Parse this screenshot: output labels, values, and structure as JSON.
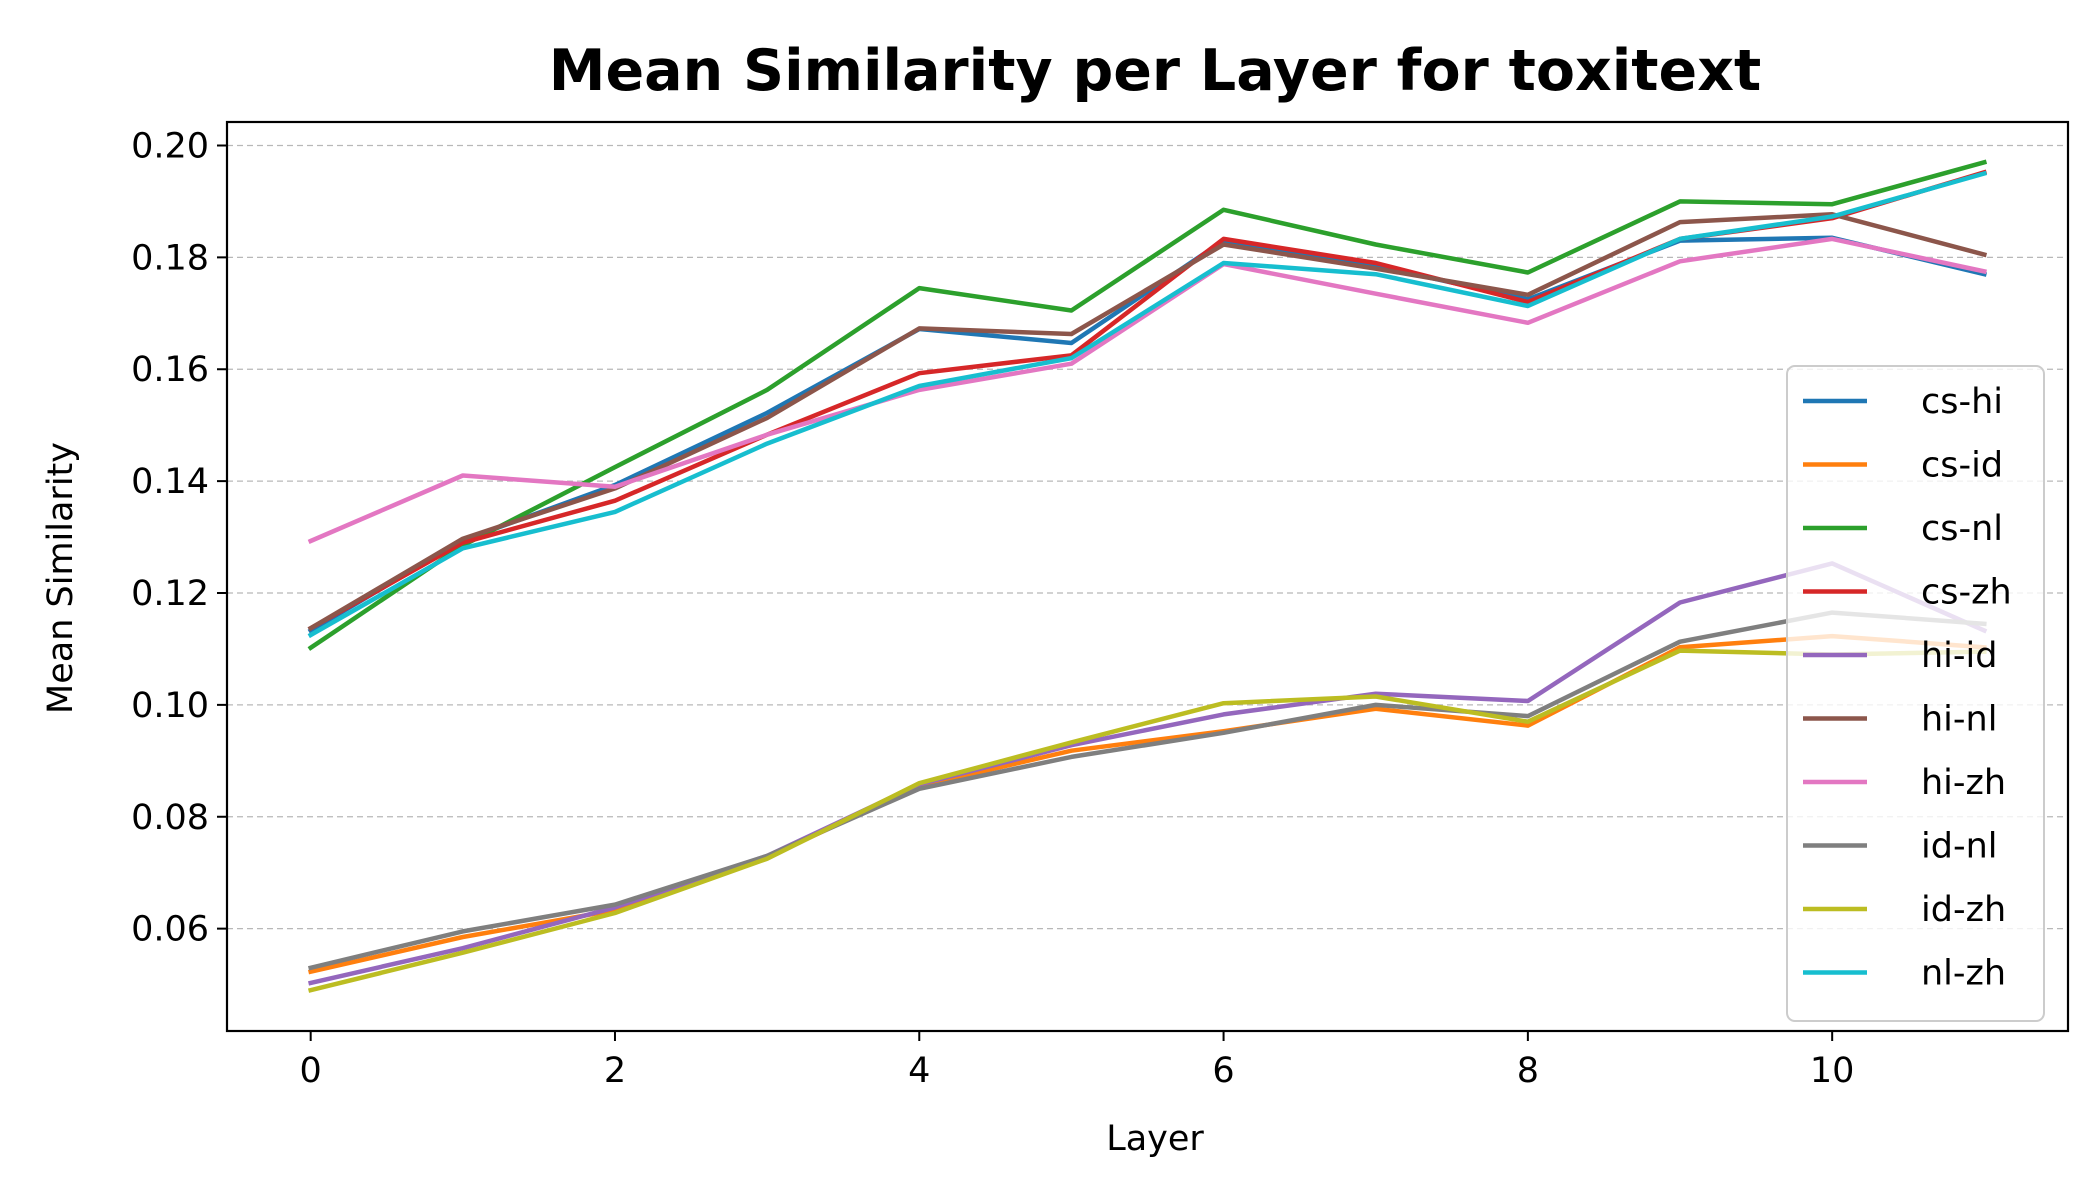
{
  "chart_data": {
    "type": "line",
    "title": "Mean Similarity per Layer for toxitext",
    "xlabel": "Layer",
    "ylabel": "Mean Similarity",
    "x": [
      0,
      1,
      2,
      3,
      4,
      5,
      6,
      7,
      8,
      9,
      10,
      11
    ],
    "xlim": [
      -0.55,
      11.55
    ],
    "ylim": [
      0.0417,
      0.2042
    ],
    "xticks": [
      0,
      2,
      4,
      6,
      8,
      10
    ],
    "xtick_labels": [
      "0",
      "2",
      "4",
      "6",
      "8",
      "10"
    ],
    "yticks": [
      0.06,
      0.08,
      0.1,
      0.12,
      0.14,
      0.16,
      0.18,
      0.2
    ],
    "ytick_labels": [
      "0.06",
      "0.08",
      "0.10",
      "0.12",
      "0.14",
      "0.16",
      "0.18",
      "0.20"
    ],
    "grid": "y-dashed",
    "legend_position": "right",
    "series": [
      {
        "name": "cs-hi",
        "color": "#1f77b4",
        "values": [
          0.1133,
          0.1294,
          0.1393,
          0.1522,
          0.1672,
          0.1647,
          0.183,
          0.1785,
          0.1725,
          0.183,
          0.1835,
          0.177
        ]
      },
      {
        "name": "cs-id",
        "color": "#ff7f0e",
        "values": [
          0.0523,
          0.0585,
          0.0633,
          0.0727,
          0.0855,
          0.0918,
          0.0953,
          0.0993,
          0.0963,
          0.1103,
          0.1123,
          0.1103
        ]
      },
      {
        "name": "cs-nl",
        "color": "#2ca02c",
        "values": [
          0.1102,
          0.1285,
          0.1425,
          0.1563,
          0.1745,
          0.1705,
          0.1885,
          0.1823,
          0.1773,
          0.19,
          0.1895,
          0.197
        ]
      },
      {
        "name": "cs-zh",
        "color": "#d62728",
        "values": [
          0.1137,
          0.129,
          0.1365,
          0.1483,
          0.1593,
          0.1625,
          0.1833,
          0.179,
          0.172,
          0.1833,
          0.187,
          0.1952
        ]
      },
      {
        "name": "hi-id",
        "color": "#9467bd",
        "values": [
          0.0503,
          0.0565,
          0.0638,
          0.073,
          0.0858,
          0.0928,
          0.0983,
          0.102,
          0.1007,
          0.1183,
          0.1253,
          0.1133
        ]
      },
      {
        "name": "hi-nl",
        "color": "#8c564b",
        "values": [
          0.1137,
          0.1297,
          0.1387,
          0.1513,
          0.1673,
          0.1663,
          0.1823,
          0.178,
          0.1733,
          0.1863,
          0.1877,
          0.1805
        ]
      },
      {
        "name": "hi-zh",
        "color": "#e377c2",
        "values": [
          0.1293,
          0.141,
          0.139,
          0.1483,
          0.1563,
          0.161,
          0.1788,
          0.1735,
          0.1683,
          0.1793,
          0.1833,
          0.1775
        ]
      },
      {
        "name": "id-nl",
        "color": "#7f7f7f",
        "values": [
          0.053,
          0.0595,
          0.0643,
          0.073,
          0.085,
          0.0907,
          0.095,
          0.1,
          0.098,
          0.1113,
          0.1165,
          0.1145
        ]
      },
      {
        "name": "id-zh",
        "color": "#bcbd22",
        "values": [
          0.049,
          0.0557,
          0.0628,
          0.0725,
          0.086,
          0.0933,
          0.1003,
          0.1015,
          0.097,
          0.1097,
          0.109,
          0.1095
        ]
      },
      {
        "name": "nl-zh",
        "color": "#17becf",
        "values": [
          0.1125,
          0.128,
          0.1345,
          0.1467,
          0.157,
          0.162,
          0.179,
          0.177,
          0.1713,
          0.1833,
          0.1873,
          0.195
        ]
      }
    ]
  }
}
